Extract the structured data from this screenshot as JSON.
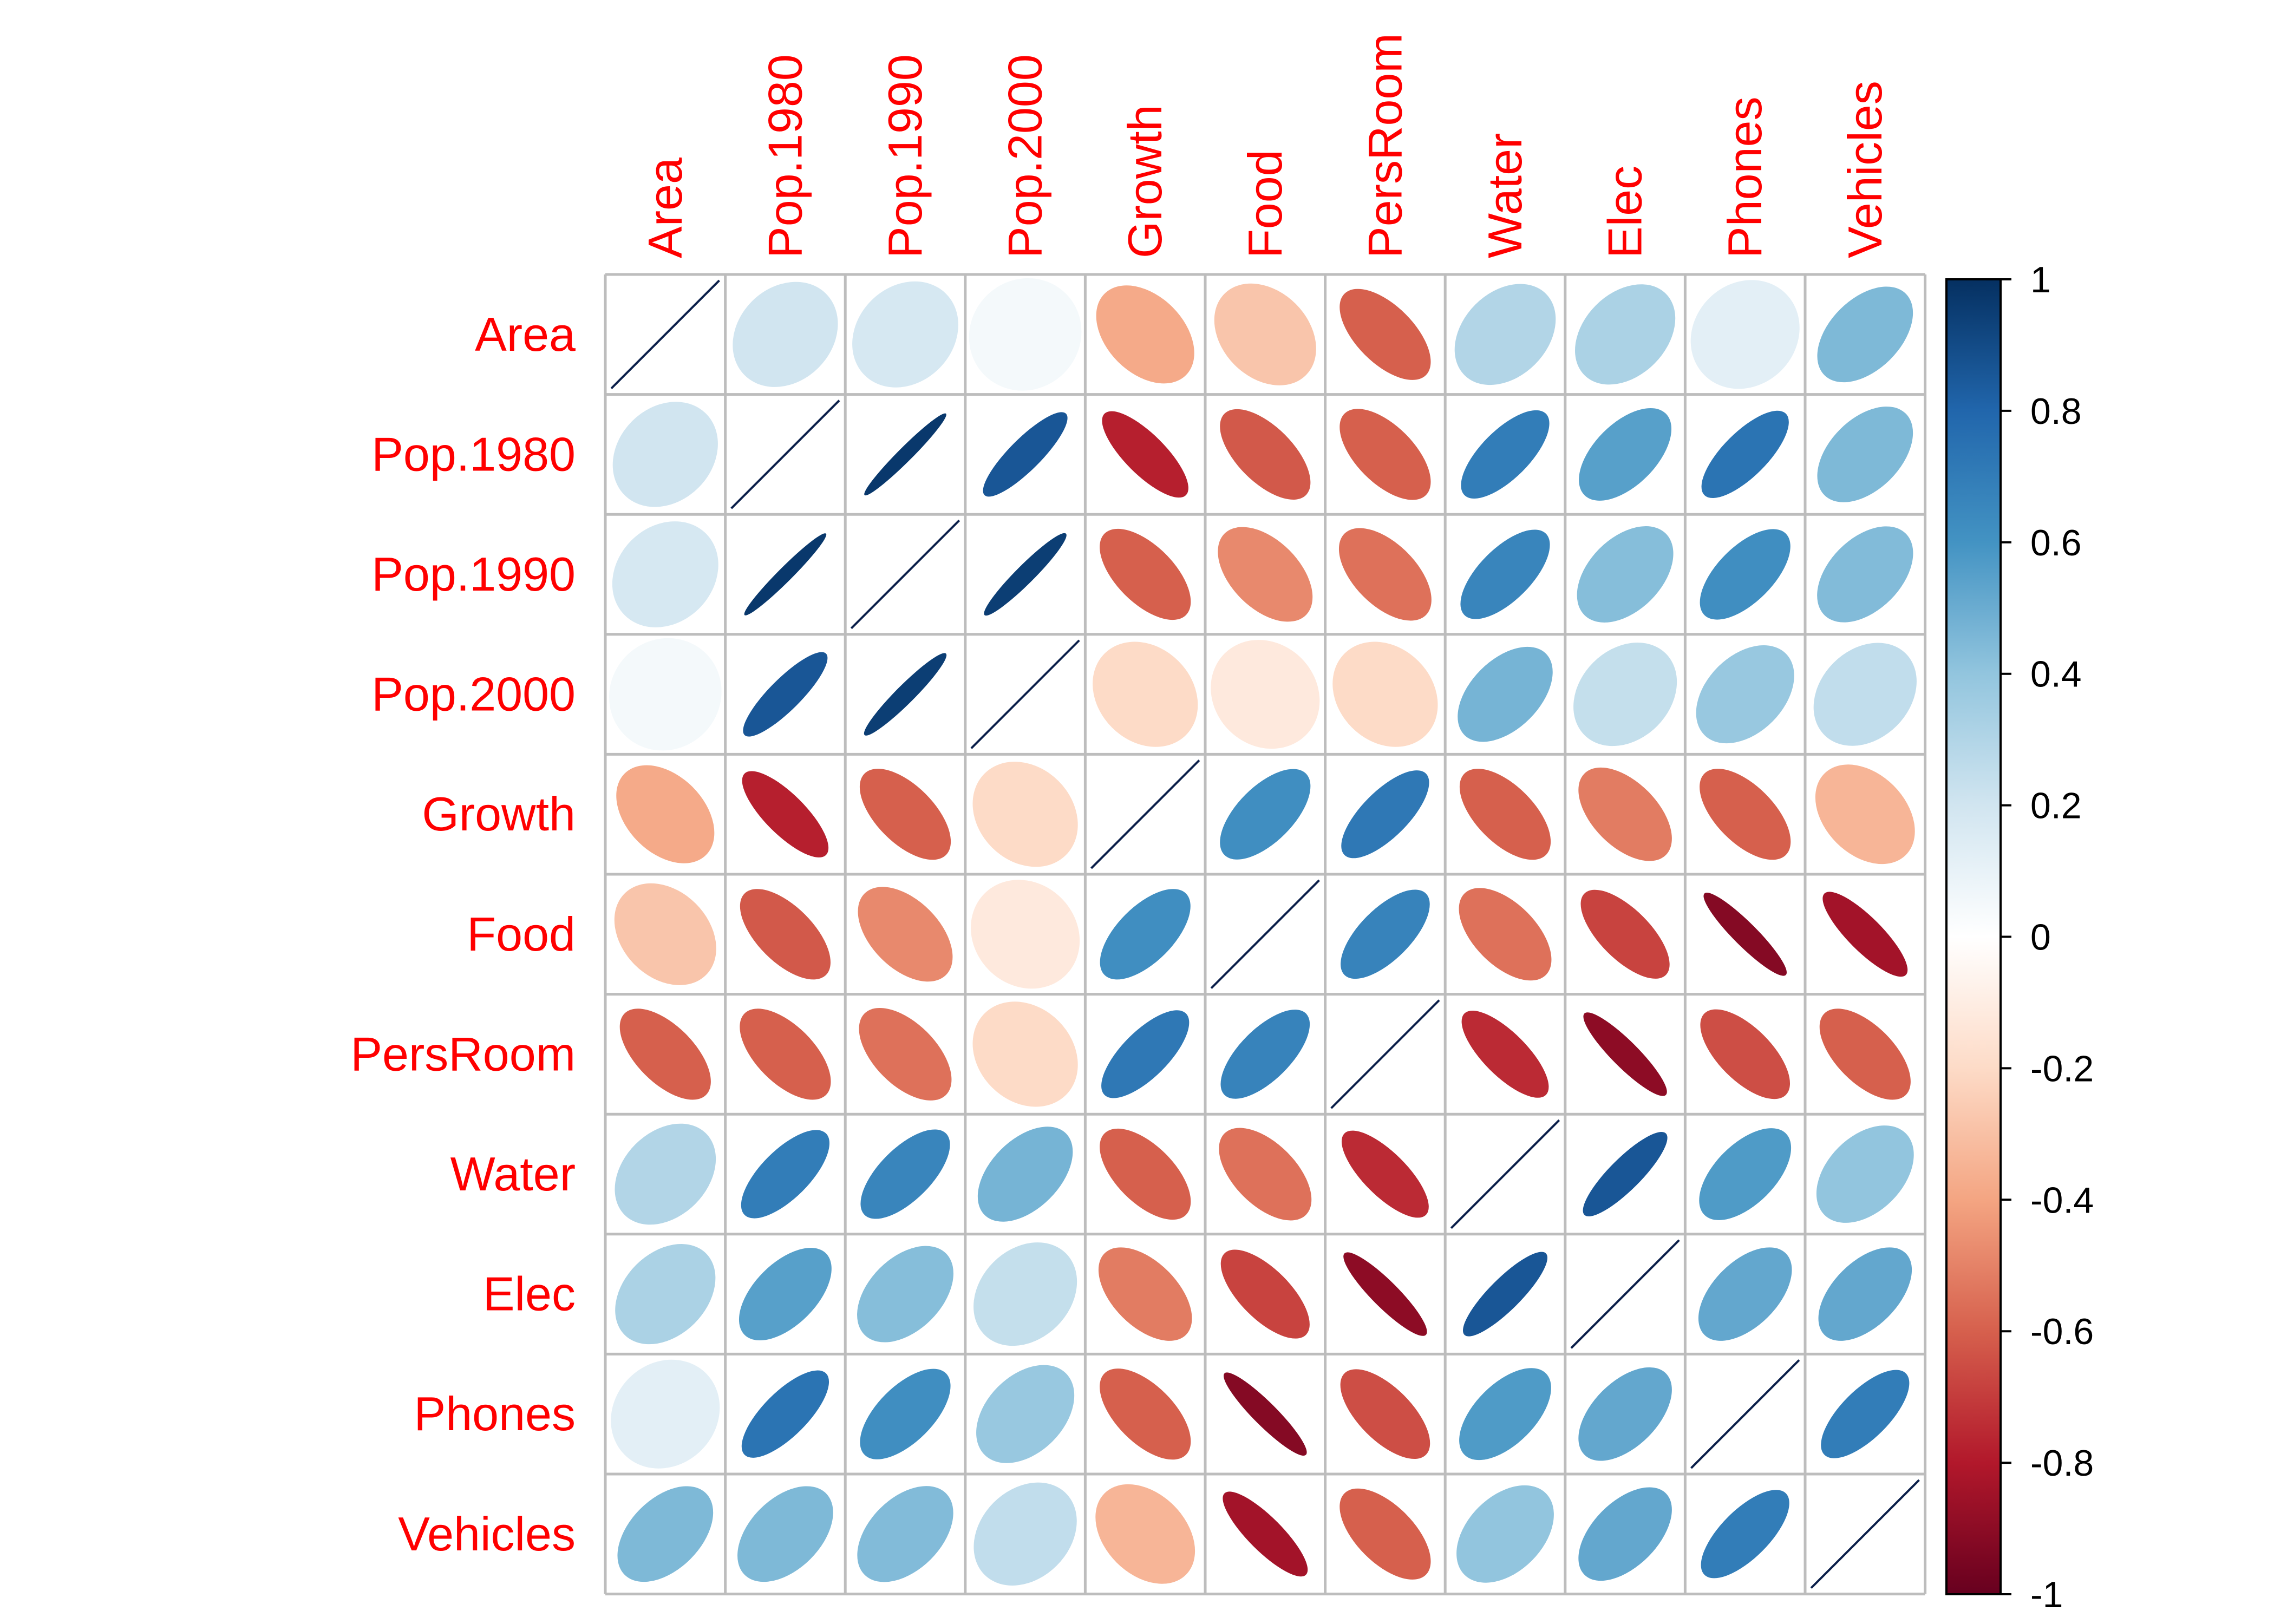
{
  "chart_data": {
    "type": "heatmap",
    "variables": [
      "Area",
      "Pop.1980",
      "Pop.1990",
      "Pop.2000",
      "Growth",
      "Food",
      "PersRoom",
      "Water",
      "Elec",
      "Phones",
      "Vehicles"
    ],
    "matrix": [
      [
        1,
        0.2,
        0.18,
        0.05,
        -0.38,
        -0.28,
        -0.6,
        0.3,
        0.32,
        0.12,
        0.45
      ],
      [
        0.2,
        1,
        0.97,
        0.86,
        -0.78,
        -0.62,
        -0.6,
        0.7,
        0.55,
        0.74,
        0.45
      ],
      [
        0.18,
        0.97,
        1,
        0.95,
        -0.6,
        -0.48,
        -0.55,
        0.66,
        0.43,
        0.62,
        0.44
      ],
      [
        0.05,
        0.86,
        0.95,
        1,
        -0.2,
        -0.12,
        -0.2,
        0.47,
        0.24,
        0.38,
        0.25
      ],
      [
        -0.38,
        -0.78,
        -0.6,
        -0.2,
        1,
        0.62,
        0.72,
        -0.6,
        -0.52,
        -0.6,
        -0.34
      ],
      [
        -0.28,
        -0.62,
        -0.48,
        -0.12,
        0.62,
        1,
        0.67,
        -0.55,
        -0.68,
        -0.92,
        -0.84
      ],
      [
        -0.6,
        -0.6,
        -0.55,
        -0.2,
        0.72,
        0.67,
        1,
        -0.75,
        -0.9,
        -0.65,
        -0.6
      ],
      [
        0.3,
        0.7,
        0.66,
        0.47,
        -0.6,
        -0.55,
        -0.75,
        1,
        0.86,
        0.57,
        0.4
      ],
      [
        0.32,
        0.55,
        0.43,
        0.24,
        -0.52,
        -0.68,
        -0.9,
        0.86,
        1,
        0.52,
        0.52
      ],
      [
        0.12,
        0.74,
        0.62,
        0.38,
        -0.6,
        -0.92,
        -0.65,
        0.57,
        0.52,
        1,
        0.7
      ],
      [
        0.45,
        0.45,
        0.44,
        0.25,
        -0.34,
        -0.84,
        -0.6,
        0.4,
        0.52,
        0.7,
        1
      ]
    ],
    "colorbar": {
      "min": -1,
      "max": 1,
      "ticks": [
        1,
        0.8,
        0.6,
        0.4,
        0.2,
        0,
        -0.2,
        -0.4,
        -0.6,
        -0.8,
        -1
      ],
      "tick_labels": [
        "1",
        "0.8",
        "0.6",
        "0.4",
        "0.2",
        "0",
        "-0.2",
        "-0.4",
        "-0.6",
        "-0.8",
        "-1"
      ]
    },
    "label_color": "#ff0000",
    "grid_color": "#bdbdbd",
    "diagonal_line_color": "#0b1f4a",
    "palette": [
      "#67001f",
      "#b2182b",
      "#d6604d",
      "#f4a582",
      "#fddbc7",
      "#ffffff",
      "#d1e5f0",
      "#92c5de",
      "#4393c3",
      "#2166ac",
      "#053061"
    ],
    "title": "",
    "xlabel": "",
    "ylabel": "",
    "grid": true,
    "legend": "right"
  }
}
